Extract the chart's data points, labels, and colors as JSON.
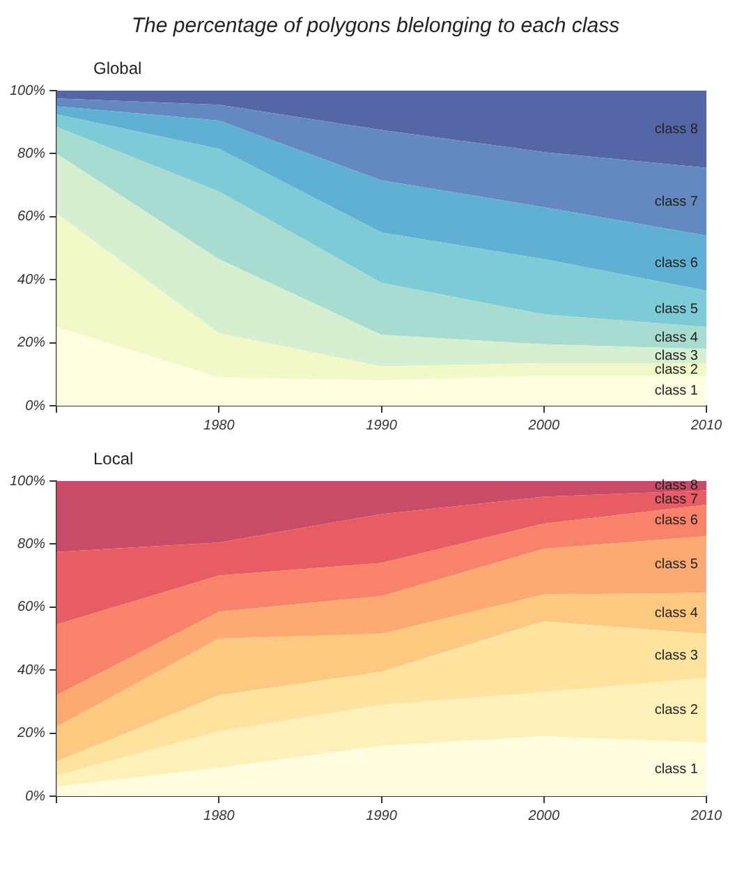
{
  "chart_data": [
    {
      "type": "area",
      "title": "The percentage of polygons blelonging to each class",
      "subtitle": "Global",
      "stacked": true,
      "grid": false,
      "x": [
        1970,
        1980,
        1990,
        2000,
        2010
      ],
      "xlim": [
        1970,
        2010
      ],
      "xticks": [
        {
          "value": 1970,
          "label": null
        },
        1980,
        1990,
        2000,
        2010
      ],
      "ylim": [
        0,
        100
      ],
      "yticks": [
        {
          "value": 0,
          "label": "0%"
        },
        {
          "value": 20,
          "label": "20%"
        },
        {
          "value": 40,
          "label": "40%"
        },
        {
          "value": 60,
          "label": "60%"
        },
        {
          "value": 80,
          "label": "80%"
        },
        {
          "value": 100,
          "label": "100%"
        }
      ],
      "series": [
        {
          "name": "class 1",
          "color": "#fefee1",
          "values": [
            25,
            9,
            8,
            9.5,
            9.5
          ]
        },
        {
          "name": "class 2",
          "color": "#f2f9c8",
          "values": [
            36,
            14,
            4.5,
            4,
            4
          ]
        },
        {
          "name": "class 3",
          "color": "#d6efd0",
          "values": [
            19,
            23.5,
            10,
            6,
            4.5
          ]
        },
        {
          "name": "class 4",
          "color": "#a8dcd1",
          "values": [
            8.5,
            21.5,
            16.5,
            9.5,
            7
          ]
        },
        {
          "name": "class 5",
          "color": "#7dcbd6",
          "values": [
            4,
            13.5,
            16,
            17.5,
            11.5
          ]
        },
        {
          "name": "class 6",
          "color": "#5fb0d3",
          "values": [
            2.5,
            9,
            16.5,
            16.5,
            17.5
          ]
        },
        {
          "name": "class 7",
          "color": "#6389c0",
          "values": [
            2.5,
            5,
            16,
            17.5,
            21.5
          ]
        },
        {
          "name": "class 8",
          "color": "#5566a6",
          "values": [
            2.5,
            4.5,
            12.5,
            19.5,
            24.5
          ]
        }
      ]
    },
    {
      "type": "area",
      "subtitle": "Local",
      "stacked": true,
      "grid": false,
      "x": [
        1970,
        1980,
        1990,
        2000,
        2010
      ],
      "xlim": [
        1970,
        2010
      ],
      "xticks": [
        {
          "value": 1970,
          "label": null
        },
        1980,
        1990,
        2000,
        2010
      ],
      "ylim": [
        0,
        100
      ],
      "yticks": [
        {
          "value": 0,
          "label": "0%"
        },
        {
          "value": 20,
          "label": "20%"
        },
        {
          "value": 40,
          "label": "40%"
        },
        {
          "value": 60,
          "label": "60%"
        },
        {
          "value": 80,
          "label": "80%"
        },
        {
          "value": 100,
          "label": "100%"
        }
      ],
      "series": [
        {
          "name": "class 1",
          "color": "#fffde0",
          "values": [
            3,
            9,
            16,
            19,
            17
          ]
        },
        {
          "name": "class 2",
          "color": "#fdf0b8",
          "values": [
            3.5,
            11.5,
            13,
            14,
            20.5
          ]
        },
        {
          "name": "class 3",
          "color": "#fde39e",
          "values": [
            4.5,
            11.5,
            10.5,
            22.5,
            14
          ]
        },
        {
          "name": "class 4",
          "color": "#fdc880",
          "values": [
            11,
            18,
            12,
            8.5,
            13
          ]
        },
        {
          "name": "class 5",
          "color": "#fcaa72",
          "values": [
            10,
            8.5,
            12,
            14.5,
            18
          ]
        },
        {
          "name": "class 6",
          "color": "#f9826a",
          "values": [
            22.5,
            11.5,
            10.5,
            8,
            10
          ]
        },
        {
          "name": "class 7",
          "color": "#e75d63",
          "values": [
            23,
            10.5,
            15.5,
            8.5,
            4.5
          ]
        },
        {
          "name": "class 8",
          "color": "#c84b68",
          "values": [
            22.5,
            19.5,
            10.5,
            5,
            3
          ]
        }
      ]
    }
  ]
}
